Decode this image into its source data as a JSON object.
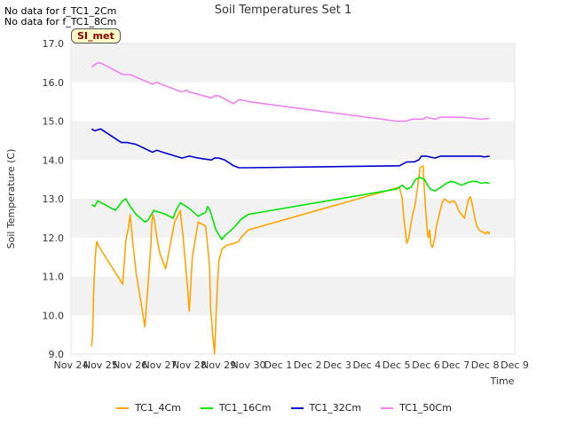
{
  "no_data_notes": [
    "No data for f_TC1_2Cm",
    "No data for f_TC1_8Cm"
  ],
  "badge": "SI_met",
  "chart_data": {
    "type": "line",
    "title": "Soil Temperatures Set 1",
    "xlabel": "Time",
    "ylabel": "Soil Temperature (C)",
    "ylim": [
      9.0,
      17.0
    ],
    "xlim": [
      0,
      15
    ],
    "x_unit": "days since Nov 24",
    "yticks": [
      "9.0",
      "10.0",
      "11.0",
      "12.0",
      "13.0",
      "14.0",
      "15.0",
      "16.0",
      "17.0"
    ],
    "xticks": [
      "Nov 24",
      "Nov 25",
      "Nov 26",
      "Nov 27",
      "Nov 28",
      "Nov 29",
      "Nov 30",
      "Dec 1",
      "Dec 2",
      "Dec 3",
      "Dec 4",
      "Dec 5",
      "Dec 6",
      "Dec 7",
      "Dec 8",
      "Dec 9"
    ],
    "grid": "horizontal bands",
    "legend_position": "bottom",
    "series": [
      {
        "name": "TC1_4Cm",
        "color": "#ffa500",
        "x": [
          0.7,
          0.73,
          0.77,
          0.82,
          0.87,
          0.92,
          1.75,
          1.85,
          1.95,
          2.0,
          2.05,
          2.1,
          2.2,
          2.35,
          2.5,
          2.7,
          2.72,
          2.77,
          2.83,
          2.9,
          3.0,
          3.2,
          3.5,
          3.7,
          3.72,
          3.78,
          3.85,
          3.95,
          4.0,
          4.1,
          4.3,
          4.55,
          4.68,
          4.72,
          4.78,
          4.85,
          4.95,
          5.0,
          5.1,
          5.25,
          5.5,
          5.67,
          5.7,
          5.75,
          5.8,
          5.87,
          5.93,
          6.0,
          11.1,
          11.2,
          11.25,
          11.3,
          11.35,
          11.42,
          11.48,
          11.55,
          11.62,
          11.7,
          11.8,
          11.9,
          11.95,
          12.0,
          12.05,
          12.08,
          12.12,
          12.17,
          12.22,
          12.3,
          12.35,
          12.42,
          12.48,
          12.55,
          12.62,
          12.7,
          12.8,
          12.9,
          13.0,
          13.1,
          13.2,
          13.3,
          13.38,
          13.45,
          13.5,
          13.58,
          13.65,
          13.72,
          13.8,
          13.87,
          13.93,
          14.0,
          14.07,
          14.12,
          14.15
        ],
        "y": [
          9.2,
          9.5,
          10.7,
          11.5,
          11.9,
          11.8,
          10.8,
          11.9,
          12.3,
          12.6,
          12.2,
          11.8,
          11.1,
          10.4,
          9.7,
          11.8,
          12.3,
          12.6,
          12.4,
          12.0,
          11.6,
          11.2,
          12.4,
          12.7,
          12.5,
          12.1,
          11.5,
          10.6,
          10.1,
          11.5,
          12.4,
          12.3,
          11.3,
          10.2,
          9.6,
          9.0,
          10.8,
          11.4,
          11.7,
          11.8,
          11.85,
          11.9,
          11.95,
          12.0,
          12.05,
          12.1,
          12.15,
          12.2,
          13.3,
          13.0,
          12.5,
          12.2,
          11.85,
          12.0,
          12.3,
          12.6,
          12.8,
          13.2,
          13.8,
          13.85,
          13.2,
          12.6,
          12.1,
          12.0,
          12.2,
          11.8,
          11.75,
          12.0,
          12.3,
          12.5,
          12.7,
          12.9,
          13.0,
          12.95,
          12.9,
          12.95,
          12.9,
          12.7,
          12.6,
          12.5,
          12.8,
          13.0,
          13.05,
          12.8,
          12.5,
          12.3,
          12.2,
          12.15,
          12.15,
          12.1,
          12.15,
          12.1,
          12.15
        ]
      },
      {
        "name": "TC1_16Cm",
        "color": "#00e600",
        "x": [
          0.7,
          0.8,
          0.9,
          1.5,
          1.75,
          1.85,
          2.0,
          2.2,
          2.5,
          2.6,
          2.8,
          3.0,
          3.2,
          3.45,
          3.55,
          3.7,
          4.0,
          4.3,
          4.55,
          4.62,
          4.7,
          4.8,
          4.9,
          5.1,
          5.2,
          5.35,
          5.5,
          5.67,
          5.72,
          5.8,
          5.9,
          6.0,
          11.0,
          11.2,
          11.35,
          11.5,
          11.65,
          11.8,
          11.95,
          12.05,
          12.15,
          12.3,
          12.5,
          12.7,
          12.85,
          13.0,
          13.2,
          13.35,
          13.55,
          13.7,
          13.85,
          14.0,
          14.15
        ],
        "y": [
          12.85,
          12.8,
          12.95,
          12.7,
          12.95,
          13.0,
          12.8,
          12.6,
          12.4,
          12.45,
          12.7,
          12.65,
          12.6,
          12.5,
          12.7,
          12.9,
          12.75,
          12.55,
          12.65,
          12.8,
          12.7,
          12.45,
          12.2,
          11.95,
          12.05,
          12.15,
          12.25,
          12.4,
          12.45,
          12.5,
          12.55,
          12.6,
          13.25,
          13.35,
          13.25,
          13.3,
          13.5,
          13.55,
          13.5,
          13.35,
          13.25,
          13.2,
          13.3,
          13.4,
          13.45,
          13.42,
          13.35,
          13.4,
          13.45,
          13.45,
          13.4,
          13.42,
          13.4
        ]
      },
      {
        "name": "TC1_32Cm",
        "color": "#0000cc",
        "x": [
          0.7,
          0.8,
          1.0,
          1.7,
          1.9,
          2.2,
          2.75,
          2.9,
          3.1,
          3.75,
          4.0,
          4.3,
          4.75,
          4.85,
          5.0,
          5.2,
          5.5,
          5.67,
          5.75,
          6.0,
          11.1,
          11.35,
          11.6,
          11.75,
          11.85,
          12.0,
          12.3,
          12.5,
          12.8,
          13.1,
          13.5,
          13.85,
          13.95,
          14.15
        ],
        "y": [
          14.8,
          14.75,
          14.8,
          14.45,
          14.45,
          14.4,
          14.2,
          14.25,
          14.2,
          14.05,
          14.1,
          14.05,
          14.0,
          14.05,
          14.05,
          14.0,
          13.85,
          13.8,
          13.8,
          13.8,
          13.85,
          13.95,
          13.95,
          14.0,
          14.1,
          14.1,
          14.05,
          14.1,
          14.1,
          14.1,
          14.1,
          14.1,
          14.08,
          14.1
        ]
      },
      {
        "name": "TC1_50Cm",
        "color": "#ee82ee",
        "x": [
          0.7,
          0.8,
          0.9,
          1.0,
          1.75,
          1.85,
          2.0,
          2.75,
          2.9,
          3.05,
          3.75,
          3.9,
          4.0,
          4.75,
          4.85,
          5.0,
          5.5,
          5.67,
          5.75,
          6.0,
          11.0,
          11.3,
          11.55,
          11.75,
          11.9,
          12.0,
          12.3,
          12.5,
          12.8,
          13.1,
          13.5,
          13.85,
          14.15
        ],
        "y": [
          16.4,
          16.45,
          16.5,
          16.5,
          16.2,
          16.2,
          16.2,
          15.95,
          16.0,
          15.95,
          15.75,
          15.8,
          15.75,
          15.6,
          15.65,
          15.65,
          15.45,
          15.55,
          15.55,
          15.5,
          15.0,
          15.0,
          15.05,
          15.05,
          15.05,
          15.1,
          15.05,
          15.1,
          15.1,
          15.1,
          15.08,
          15.05,
          15.07
        ]
      }
    ]
  }
}
